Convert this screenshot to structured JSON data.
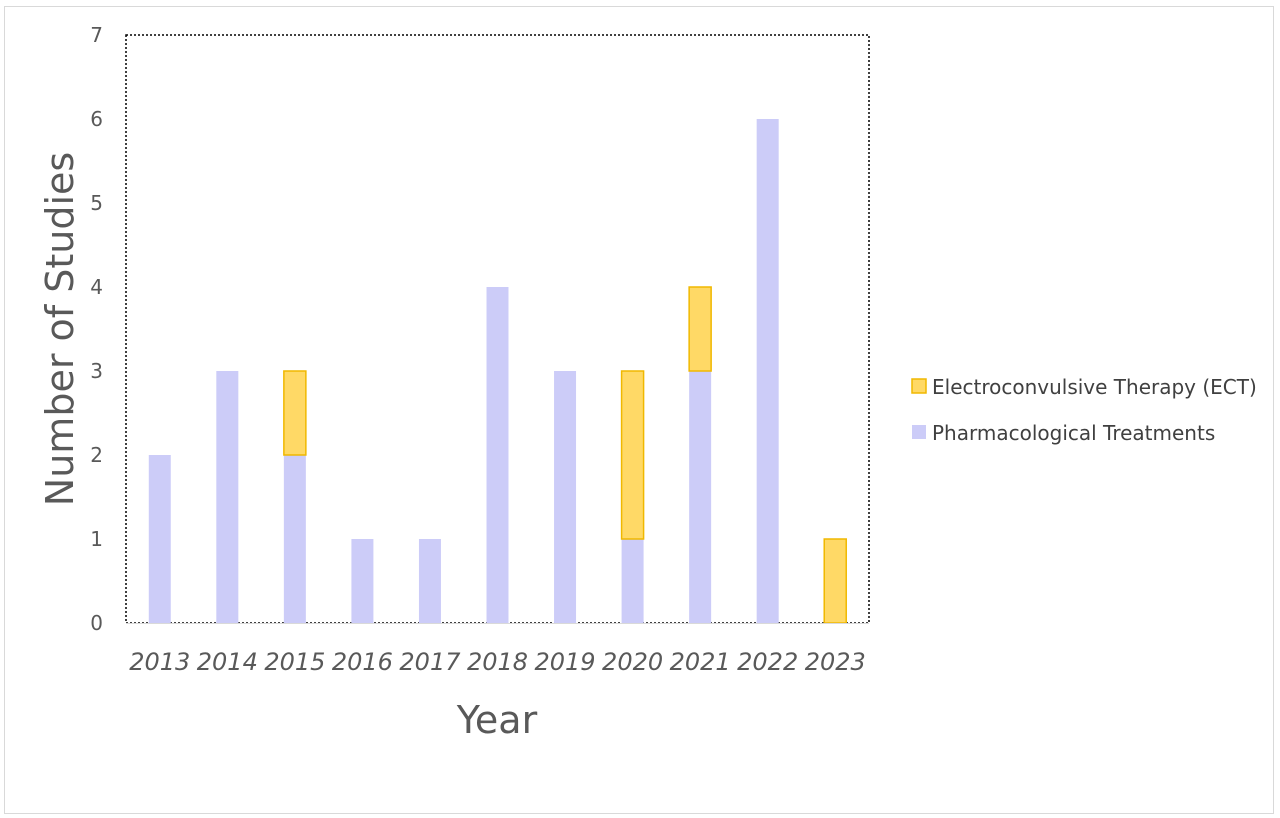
{
  "chart_data": {
    "type": "bar",
    "stacked": true,
    "categories": [
      "2013",
      "2014",
      "2015",
      "2016",
      "2017",
      "2018",
      "2019",
      "2020",
      "2021",
      "2022",
      "2023"
    ],
    "series": [
      {
        "name": "Pharmacological Treatments",
        "color": "#ccccf8",
        "values": [
          2,
          3,
          2,
          1,
          1,
          4,
          3,
          1,
          3,
          6,
          0
        ]
      },
      {
        "name": "Electroconvulsive Therapy (ECT)",
        "color": "#ffd966",
        "stroke": "#f0b800",
        "values": [
          0,
          0,
          1,
          0,
          0,
          0,
          0,
          2,
          1,
          0,
          1
        ]
      }
    ],
    "xlabel": "Year",
    "ylabel": "Number of Studies",
    "ylim": [
      0,
      7
    ],
    "yticks": [
      "0",
      "1",
      "2",
      "3",
      "4",
      "5",
      "6",
      "7"
    ],
    "grid": false,
    "legend_position": "right",
    "legend_order": [
      "Electroconvulsive Therapy (ECT)",
      "Pharmacological Treatments"
    ]
  }
}
